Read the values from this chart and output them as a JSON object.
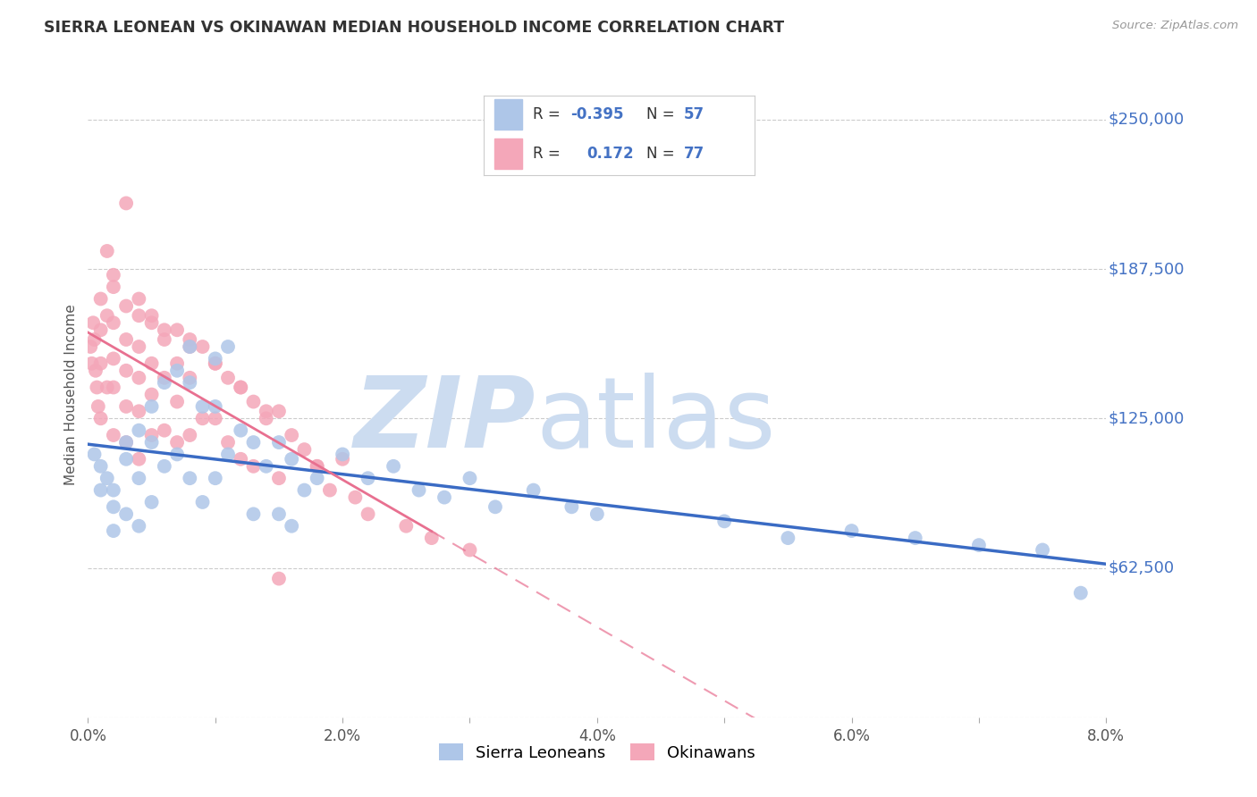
{
  "title": "SIERRA LEONEAN VS OKINAWAN MEDIAN HOUSEHOLD INCOME CORRELATION CHART",
  "source": "Source: ZipAtlas.com",
  "ylabel": "Median Household Income",
  "xlim": [
    0.0,
    0.08
  ],
  "ylim": [
    0,
    270000
  ],
  "ytick_vals": [
    62500,
    125000,
    187500,
    250000
  ],
  "ytick_labels": [
    "$62,500",
    "$125,000",
    "$187,500",
    "$250,000"
  ],
  "xticks": [
    0.0,
    0.01,
    0.02,
    0.03,
    0.04,
    0.05,
    0.06,
    0.07,
    0.08
  ],
  "xtick_labels": [
    "0.0%",
    "",
    "2.0%",
    "",
    "4.0%",
    "",
    "6.0%",
    "",
    "8.0%"
  ],
  "sierra_color": "#aec6e8",
  "okinawan_color": "#f4a7b9",
  "sierra_line_color": "#3a6bc4",
  "okinawan_line_color": "#e87090",
  "axis_label_color": "#4472c4",
  "title_color": "#333333",
  "R_sierra": -0.395,
  "N_sierra": 57,
  "R_okinawan": 0.172,
  "N_okinawan": 77,
  "background_color": "#ffffff",
  "grid_color": "#cccccc",
  "watermark_color": "#ccdcf0",
  "sierra_x": [
    0.0005,
    0.001,
    0.001,
    0.0015,
    0.002,
    0.002,
    0.002,
    0.003,
    0.003,
    0.003,
    0.004,
    0.004,
    0.004,
    0.005,
    0.005,
    0.005,
    0.006,
    0.006,
    0.007,
    0.007,
    0.008,
    0.008,
    0.008,
    0.009,
    0.009,
    0.01,
    0.01,
    0.01,
    0.011,
    0.011,
    0.012,
    0.013,
    0.013,
    0.014,
    0.015,
    0.015,
    0.016,
    0.016,
    0.017,
    0.018,
    0.02,
    0.022,
    0.024,
    0.026,
    0.028,
    0.03,
    0.032,
    0.035,
    0.038,
    0.04,
    0.05,
    0.055,
    0.06,
    0.065,
    0.07,
    0.075,
    0.078
  ],
  "sierra_y": [
    110000,
    105000,
    95000,
    100000,
    95000,
    88000,
    78000,
    115000,
    108000,
    85000,
    120000,
    100000,
    80000,
    130000,
    115000,
    90000,
    140000,
    105000,
    145000,
    110000,
    155000,
    140000,
    100000,
    130000,
    90000,
    150000,
    130000,
    100000,
    155000,
    110000,
    120000,
    115000,
    85000,
    105000,
    115000,
    85000,
    108000,
    80000,
    95000,
    100000,
    110000,
    100000,
    105000,
    95000,
    92000,
    100000,
    88000,
    95000,
    88000,
    85000,
    82000,
    75000,
    78000,
    75000,
    72000,
    70000,
    52000
  ],
  "okinawan_x": [
    0.0002,
    0.0003,
    0.0004,
    0.0005,
    0.0006,
    0.0007,
    0.0008,
    0.001,
    0.001,
    0.001,
    0.001,
    0.0015,
    0.0015,
    0.002,
    0.002,
    0.002,
    0.002,
    0.002,
    0.003,
    0.003,
    0.003,
    0.003,
    0.003,
    0.004,
    0.004,
    0.004,
    0.004,
    0.004,
    0.005,
    0.005,
    0.005,
    0.005,
    0.006,
    0.006,
    0.006,
    0.007,
    0.007,
    0.007,
    0.007,
    0.008,
    0.008,
    0.008,
    0.009,
    0.009,
    0.01,
    0.01,
    0.011,
    0.011,
    0.012,
    0.012,
    0.013,
    0.013,
    0.014,
    0.015,
    0.015,
    0.016,
    0.017,
    0.018,
    0.019,
    0.02,
    0.021,
    0.022,
    0.025,
    0.027,
    0.03,
    0.015,
    0.003,
    0.0015,
    0.002,
    0.004,
    0.005,
    0.006,
    0.008,
    0.01,
    0.012,
    0.014,
    0.018
  ],
  "okinawan_y": [
    155000,
    148000,
    165000,
    158000,
    145000,
    138000,
    130000,
    175000,
    162000,
    148000,
    125000,
    168000,
    138000,
    180000,
    165000,
    150000,
    138000,
    118000,
    172000,
    158000,
    145000,
    130000,
    115000,
    168000,
    155000,
    142000,
    128000,
    108000,
    165000,
    148000,
    135000,
    118000,
    158000,
    142000,
    120000,
    162000,
    148000,
    132000,
    115000,
    158000,
    142000,
    118000,
    155000,
    125000,
    148000,
    125000,
    142000,
    115000,
    138000,
    108000,
    132000,
    105000,
    125000,
    128000,
    100000,
    118000,
    112000,
    105000,
    95000,
    108000,
    92000,
    85000,
    80000,
    75000,
    70000,
    58000,
    215000,
    195000,
    185000,
    175000,
    168000,
    162000,
    155000,
    148000,
    138000,
    128000,
    105000
  ]
}
